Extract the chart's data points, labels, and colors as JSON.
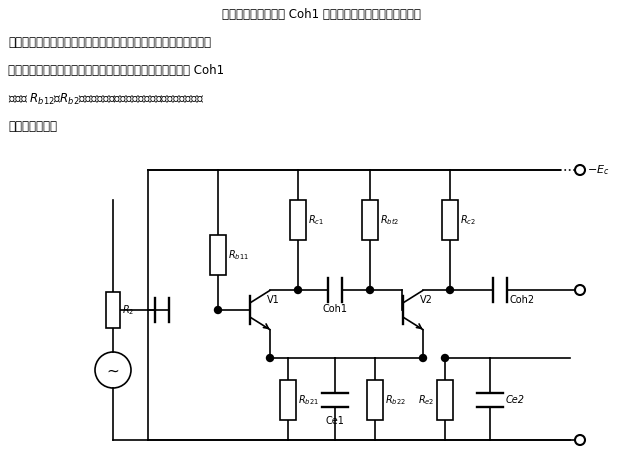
{
  "bg_color": "#ffffff",
  "line_color": "#000000",
  "lw": 1.2,
  "fig_width": 6.28,
  "fig_height": 4.53,
  "dpi": 100,
  "text_lines": [
    "    两级放大器通过电容 Coh1 联系起来，它将第一级的直流分",
    "量隔离，而将第一级放大的交流信号送到下一级放大器，所以，它",
    "称为耦合电容。在此种电路中，第一级和第二级是通过电容 Coh1",
    "容耦合放大器。"
  ]
}
